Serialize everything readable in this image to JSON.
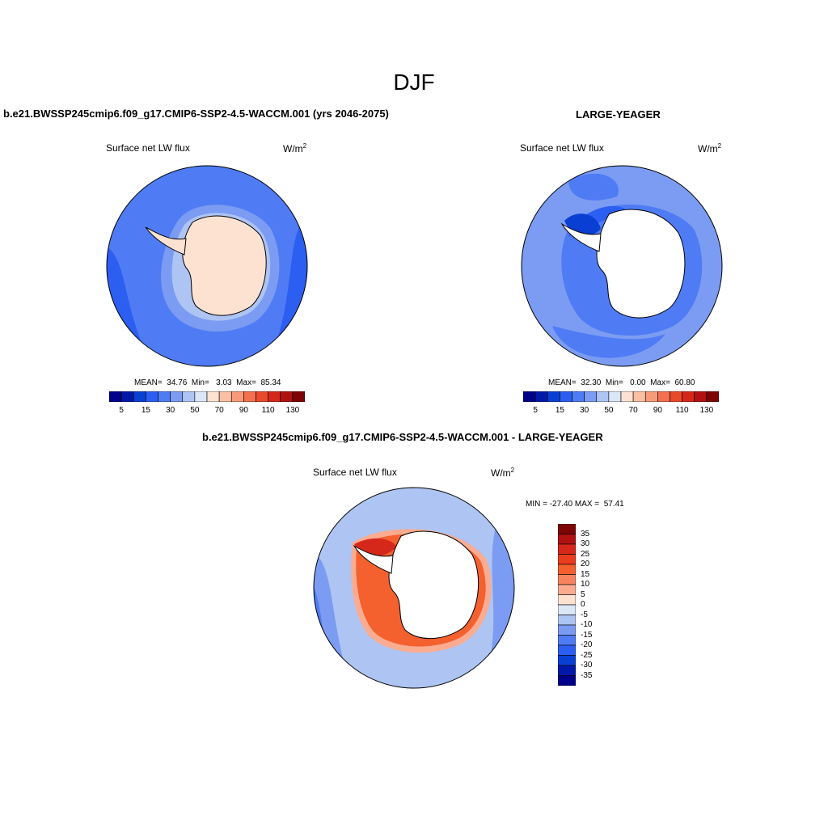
{
  "suptitle": "DJF",
  "panels": {
    "model": {
      "title": "b.e21.BWSSP245cmip6.f09_g17.CMIP6-SSP2-4.5-WACCM.001 (yrs 2046-2075)",
      "variable": "Surface net LW flux",
      "units": "W/m",
      "units_exp": "2",
      "stats": "MEAN=  34.76  Min=   3.03  Max=  85.34"
    },
    "obs": {
      "title": "LARGE-YEAGER",
      "variable": "Surface net LW flux",
      "units": "W/m",
      "units_exp": "2",
      "stats": "MEAN=  32.30  Min=   0.00  Max=  60.80"
    },
    "diff": {
      "title": "b.e21.BWSSP245cmip6.f09_g17.CMIP6-SSP2-4.5-WACCM.001 - LARGE-YEAGER",
      "variable": "Surface net LW flux",
      "units": "W/m",
      "units_exp": "2",
      "stats": "MIN = -27.40 MAX =  57.41"
    }
  },
  "colorbar_abs": {
    "labels": [
      "5",
      "15",
      "30",
      "50",
      "70",
      "90",
      "110",
      "130"
    ],
    "colors": [
      "#00008a",
      "#0019a8",
      "#0a3fd4",
      "#2c5ef2",
      "#4f7cf5",
      "#7b9cf2",
      "#aec4f2",
      "#dbe6f7",
      "#fde2d2",
      "#fbc0a4",
      "#f89a7a",
      "#f4704e",
      "#ea4a2c",
      "#d6281a",
      "#b01212",
      "#7d0505"
    ]
  },
  "colorbar_diff": {
    "labels": [
      "35",
      "30",
      "25",
      "20",
      "15",
      "10",
      "5",
      "0",
      "-5",
      "-10",
      "-15",
      "-20",
      "-25",
      "-30",
      "-35"
    ],
    "colors": [
      "#7d0505",
      "#b01212",
      "#d6281a",
      "#ea3d1e",
      "#f4602e",
      "#f7845e",
      "#fbab90",
      "#fde2d2",
      "#dbe6f7",
      "#aec4f2",
      "#7b9cf2",
      "#4f7cf5",
      "#2c5ef2",
      "#0a3fd4",
      "#0019a8",
      "#00008a"
    ]
  },
  "map_colors": {
    "ocean_deep": "#2c5ef2",
    "ocean_mid": "#4f7cf5",
    "ocean_light": "#7b9cf2",
    "ice_pale": "#aec4f2",
    "land_peach": "#fde2d2",
    "neg_dark": "#0a3fd4",
    "pos_light": "#fbab90",
    "pos_mid": "#f4602e",
    "pos_dark": "#d6281a",
    "land": "#ffffff"
  }
}
